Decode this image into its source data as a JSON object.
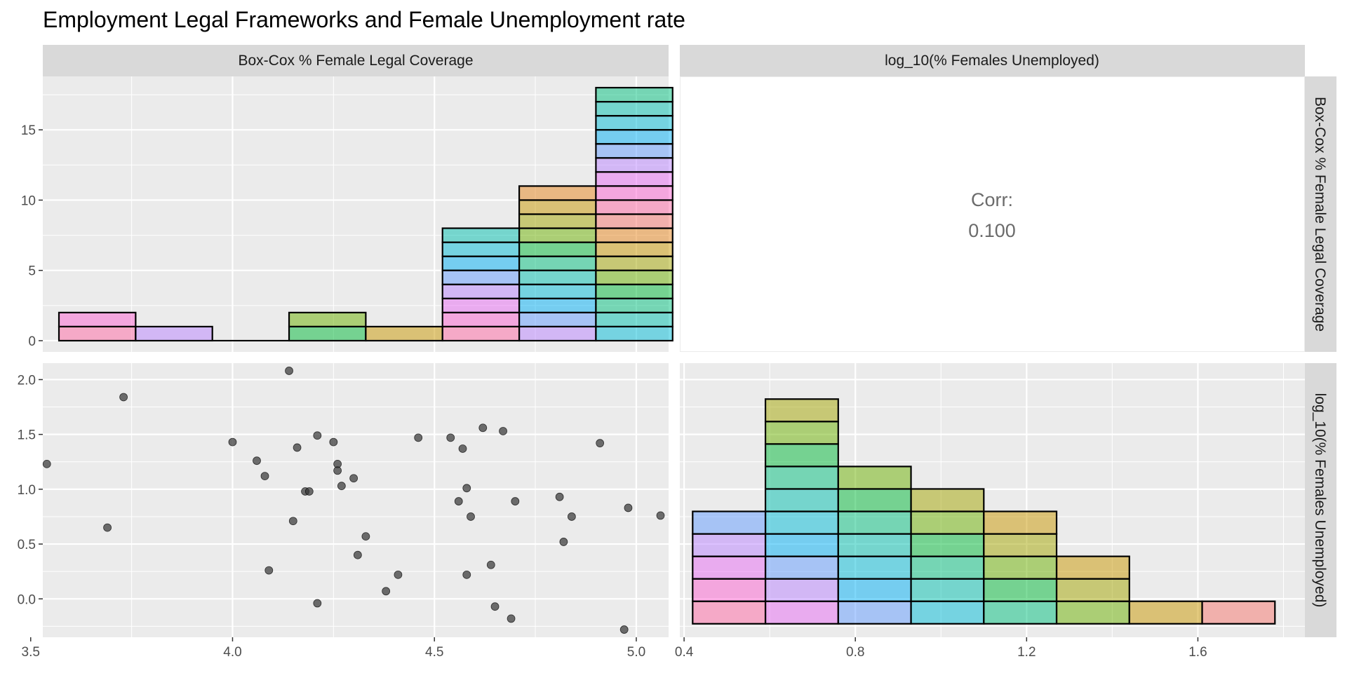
{
  "title": "Employment Legal Frameworks and Female Unemployment rate",
  "colors": {
    "panel_bg": "#ebebeb",
    "strip_bg": "#d9d9d9",
    "grid": "#ffffff",
    "point": "#333333",
    "bar_outline": "#000000",
    "palette": [
      "#F8766D",
      "#E7861B",
      "#C99800",
      "#A3A500",
      "#6BB100",
      "#00BA38",
      "#00BF7D",
      "#00C0AF",
      "#00BCD8",
      "#00B0F6",
      "#619CFF",
      "#B983FF",
      "#E76BF3",
      "#FD61D1",
      "#FF67A4"
    ]
  },
  "chart_data": [
    {
      "panel": "top-left",
      "type": "bar",
      "strip_top": "Box-Cox % Female Legal Coverage",
      "x_range": [
        3.53,
        5.08
      ],
      "ylim": [
        -0.8,
        18.8
      ],
      "y_ticks": [
        0,
        5,
        10,
        15
      ],
      "y_tick_labels": [
        "0",
        "5",
        "10",
        "15"
      ],
      "grid": true,
      "bins": [
        {
          "x0": 3.57,
          "x1": 3.76,
          "count": 2
        },
        {
          "x0": 3.76,
          "x1": 3.95,
          "count": 1
        },
        {
          "x0": 3.95,
          "x1": 4.14,
          "count": 0
        },
        {
          "x0": 4.14,
          "x1": 4.33,
          "count": 2
        },
        {
          "x0": 4.33,
          "x1": 4.52,
          "count": 1
        },
        {
          "x0": 4.52,
          "x1": 4.71,
          "count": 8
        },
        {
          "x0": 4.71,
          "x1": 4.9,
          "count": 11
        },
        {
          "x0": 4.9,
          "x1": 5.09,
          "count": 18
        }
      ]
    },
    {
      "panel": "top-right",
      "type": "table",
      "strip_top": "log_10(% Females Unemployed)",
      "strip_right": "Box-Cox % Female Legal Coverage",
      "corr_label": "Corr:",
      "corr_value": "0.100"
    },
    {
      "panel": "bottom-left",
      "type": "scatter",
      "xlim": [
        3.53,
        5.08
      ],
      "ylim": [
        -0.35,
        2.15
      ],
      "x_ticks": [
        3.5,
        4.0,
        4.5,
        5.0
      ],
      "x_tick_labels": [
        "3.5",
        "4.0",
        "4.5",
        "5.0"
      ],
      "y_ticks": [
        0.0,
        0.5,
        1.0,
        1.5,
        2.0
      ],
      "y_tick_labels": [
        "0.0",
        "0.5",
        "1.0",
        "1.5",
        "2.0"
      ],
      "grid": true,
      "points": [
        [
          3.54,
          1.23
        ],
        [
          3.69,
          0.65
        ],
        [
          3.73,
          1.84
        ],
        [
          4.0,
          1.43
        ],
        [
          4.06,
          1.26
        ],
        [
          4.08,
          1.12
        ],
        [
          4.09,
          0.26
        ],
        [
          4.14,
          2.08
        ],
        [
          4.15,
          0.71
        ],
        [
          4.16,
          1.38
        ],
        [
          4.18,
          0.98
        ],
        [
          4.19,
          0.98
        ],
        [
          4.21,
          1.49
        ],
        [
          4.21,
          -0.04
        ],
        [
          4.25,
          1.43
        ],
        [
          4.26,
          1.23
        ],
        [
          4.26,
          1.17
        ],
        [
          4.27,
          1.03
        ],
        [
          4.3,
          1.1
        ],
        [
          4.31,
          0.4
        ],
        [
          4.33,
          0.57
        ],
        [
          4.38,
          0.07
        ],
        [
          4.41,
          0.22
        ],
        [
          4.46,
          1.47
        ],
        [
          4.54,
          1.47
        ],
        [
          4.56,
          0.89
        ],
        [
          4.57,
          1.37
        ],
        [
          4.58,
          1.01
        ],
        [
          4.58,
          0.22
        ],
        [
          4.59,
          0.75
        ],
        [
          4.62,
          1.56
        ],
        [
          4.64,
          0.31
        ],
        [
          4.65,
          -0.07
        ],
        [
          4.67,
          1.53
        ],
        [
          4.69,
          -0.18
        ],
        [
          4.7,
          0.89
        ],
        [
          4.81,
          0.93
        ],
        [
          4.82,
          0.52
        ],
        [
          4.84,
          0.75
        ],
        [
          4.91,
          1.42
        ],
        [
          4.97,
          -0.28
        ],
        [
          4.98,
          0.83
        ],
        [
          5.06,
          0.76
        ]
      ]
    },
    {
      "panel": "bottom-right",
      "type": "bar",
      "strip_right": "log_10(% Females Unemployed)",
      "xlim": [
        0.39,
        1.85
      ],
      "ylim": [
        -0.6,
        11.6
      ],
      "x_ticks": [
        0.4,
        0.8,
        1.2,
        1.6
      ],
      "x_tick_labels": [
        "0.4",
        "0.8",
        "1.2",
        "1.6"
      ],
      "grid": true,
      "bins": [
        {
          "x0": 0.42,
          "x1": 0.59,
          "count": 5
        },
        {
          "x0": 0.59,
          "x1": 0.76,
          "count": 10
        },
        {
          "x0": 0.76,
          "x1": 0.93,
          "count": 7
        },
        {
          "x0": 0.93,
          "x1": 1.1,
          "count": 6
        },
        {
          "x0": 1.1,
          "x1": 1.27,
          "count": 5
        },
        {
          "x0": 1.27,
          "x1": 1.44,
          "count": 3
        },
        {
          "x0": 1.44,
          "x1": 1.61,
          "count": 1
        },
        {
          "x0": 1.61,
          "x1": 1.78,
          "count": 1
        }
      ]
    }
  ]
}
